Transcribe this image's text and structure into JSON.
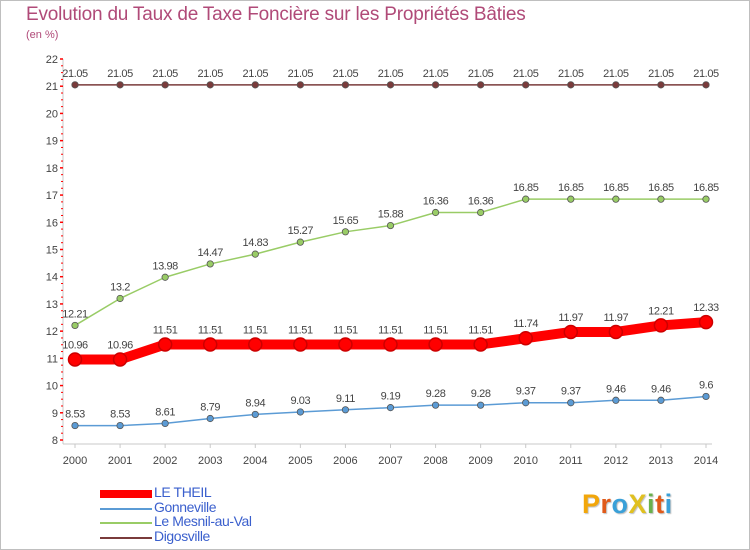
{
  "title": "Evolution du Taux de Taxe Foncière sur les Propriétés Bâties",
  "subtitle": "(en %)",
  "chart_data": {
    "type": "line",
    "title": "Evolution du Taux de Taxe Foncière sur les Propriétés Bâties",
    "ylabel": "(en %)",
    "xlabel": "",
    "x": [
      "2000",
      "2001",
      "2002",
      "2003",
      "2004",
      "2005",
      "2006",
      "2007",
      "2008",
      "2009",
      "2010",
      "2011",
      "2012",
      "2013",
      "2014"
    ],
    "ylim": [
      8,
      22
    ],
    "yticks": [
      8,
      9,
      10,
      11,
      12,
      13,
      14,
      15,
      16,
      17,
      18,
      19,
      20,
      21,
      22
    ],
    "grid": false,
    "legend": "bottom-left",
    "series": [
      {
        "name": "LE THEIL",
        "color": "#ff0000",
        "values": [
          10.96,
          10.96,
          11.51,
          11.51,
          11.51,
          11.51,
          11.51,
          11.51,
          11.51,
          11.51,
          11.74,
          11.97,
          11.97,
          12.21,
          12.33
        ],
        "labels": [
          "10.96",
          "10.96",
          "11.51",
          "11.51",
          "11.51",
          "11.51",
          "11.51",
          "11.51",
          "11.51",
          "11.51",
          "11.74",
          "11.97",
          "11.97",
          "12.21",
          "12.33"
        ]
      },
      {
        "name": "Gonneville",
        "color": "#5b9bd5",
        "values": [
          8.53,
          8.53,
          8.61,
          8.79,
          8.94,
          9.03,
          9.11,
          9.19,
          9.28,
          9.28,
          9.37,
          9.37,
          9.46,
          9.46,
          9.6
        ],
        "labels": [
          "8.53",
          "8.53",
          "8.61",
          "8.79",
          "8.94",
          "9.03",
          "9.11",
          "9.19",
          "9.28",
          "9.28",
          "9.37",
          "9.37",
          "9.46",
          "9.46",
          "9.6"
        ]
      },
      {
        "name": "Le Mesnil-au-Val",
        "color": "#99cc66",
        "values": [
          12.21,
          13.2,
          13.98,
          14.47,
          14.83,
          15.27,
          15.65,
          15.88,
          16.36,
          16.36,
          16.85,
          16.85,
          16.85,
          16.85,
          16.85
        ],
        "labels": [
          "12.21",
          "13.2",
          "13.98",
          "14.47",
          "14.83",
          "15.27",
          "15.65",
          "15.88",
          "16.36",
          "16.36",
          "16.85",
          "16.85",
          "16.85",
          "16.85",
          "16.85"
        ]
      },
      {
        "name": "Digosville",
        "color": "#7a3b3b",
        "values": [
          21.05,
          21.05,
          21.05,
          21.05,
          21.05,
          21.05,
          21.05,
          21.05,
          21.05,
          21.05,
          21.05,
          21.05,
          21.05,
          21.05,
          21.05
        ],
        "labels": [
          "21.05",
          "21.05",
          "21.05",
          "21.05",
          "21.05",
          "21.05",
          "21.05",
          "21.05",
          "21.05",
          "21.05",
          "21.05",
          "21.05",
          "21.05",
          "21.05",
          "21.05"
        ]
      }
    ]
  },
  "legend": {
    "items": [
      {
        "label": "LE THEIL",
        "color": "#ff0000"
      },
      {
        "label": "Gonneville",
        "color": "#5b9bd5"
      },
      {
        "label": "Le Mesnil-au-Val",
        "color": "#99cc66"
      },
      {
        "label": "Digosville",
        "color": "#7a3b3b"
      }
    ]
  },
  "logo": {
    "text": "ProXiti",
    "letters": [
      {
        "ch": "P",
        "color": "#f2a60a"
      },
      {
        "ch": "r",
        "color": "#e05a1a"
      },
      {
        "ch": "o",
        "color": "#3aa0d8"
      },
      {
        "ch": "X",
        "color": "#e0c020"
      },
      {
        "ch": "i",
        "color": "#6ab04c"
      },
      {
        "ch": "t",
        "color": "#e05a1a"
      },
      {
        "ch": "i",
        "color": "#3aa0d8"
      }
    ]
  }
}
